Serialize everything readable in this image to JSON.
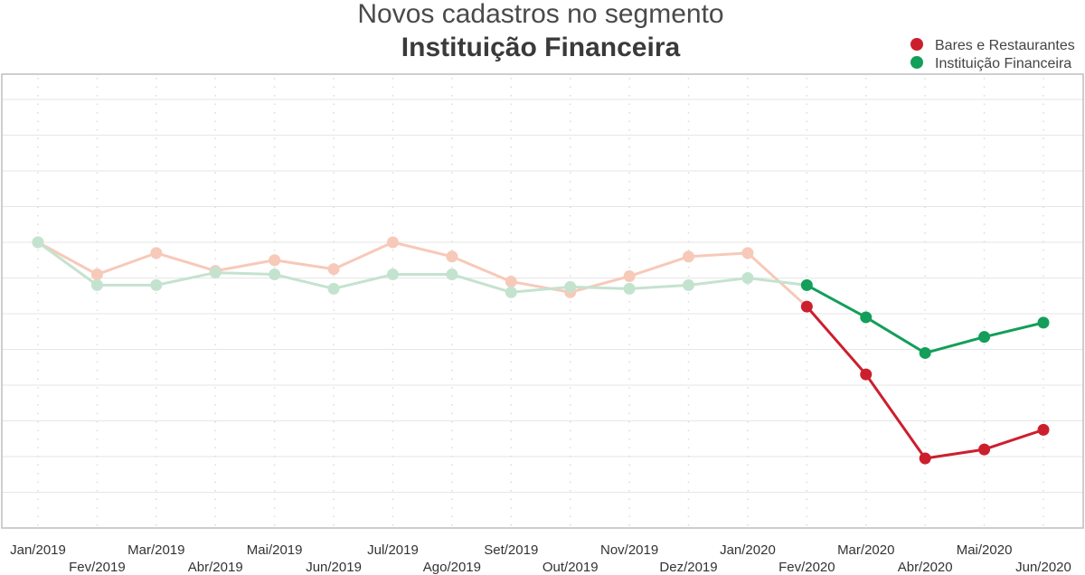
{
  "chart_data": {
    "type": "line",
    "title": "Novos cadastros no segmento",
    "subtitle": "Instituição Financeira",
    "xlabel": "",
    "ylabel": "",
    "ylim": [
      0,
      13
    ],
    "grid": true,
    "legend_position": "top-right",
    "categories": [
      "Jan/2019",
      "Fev/2019",
      "Mar/2019",
      "Abr/2019",
      "Mai/2019",
      "Jun/2019",
      "Jul/2019",
      "Ago/2019",
      "Set/2019",
      "Out/2019",
      "Nov/2019",
      "Dez/2019",
      "Jan/2020",
      "Fev/2020",
      "Mar/2020",
      "Abr/2020",
      "Mai/2020",
      "Jun/2020"
    ],
    "series": [
      {
        "name": "Bares e Restaurantes",
        "color": "#cc1f2e",
        "faded_color": "#f7c9b9",
        "values": [
          8.0,
          7.1,
          7.7,
          7.2,
          7.5,
          7.25,
          8.0,
          7.6,
          6.9,
          6.6,
          7.05,
          7.6,
          7.7,
          6.2,
          4.3,
          1.95,
          2.2,
          2.75
        ]
      },
      {
        "name": "Instituição Financeira",
        "color": "#139e5a",
        "faded_color": "#c4e3cf",
        "values": [
          8.0,
          6.8,
          6.8,
          7.15,
          7.1,
          6.7,
          7.1,
          7.1,
          6.6,
          6.75,
          6.7,
          6.8,
          7.0,
          6.8,
          5.9,
          4.9,
          5.35,
          5.75
        ]
      }
    ],
    "highlight_from_index": 13
  },
  "colors": {
    "grid": "#e6e6e6",
    "axis": "#bdbdbd",
    "vertical_dots": "#dcdcdc"
  }
}
